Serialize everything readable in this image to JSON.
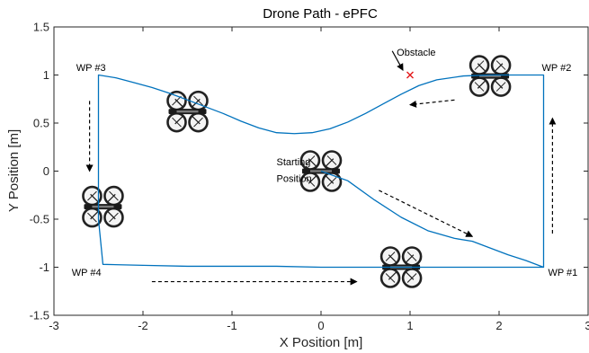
{
  "chart_data": {
    "type": "line",
    "title": "Drone Path - ePFC",
    "xlabel": "X Position [m]",
    "ylabel": "Y Position [m]",
    "xlim": [
      -3,
      3
    ],
    "ylim": [
      -1.5,
      1.5
    ],
    "xticks": [
      -3,
      -2,
      -1,
      0,
      1,
      2,
      3
    ],
    "yticks": [
      -1.5,
      -1,
      -0.5,
      0,
      0.5,
      1,
      1.5
    ],
    "xtick_labels": [
      "-3",
      "-2",
      "-1",
      "0",
      "1",
      "2",
      "3"
    ],
    "ytick_labels": [
      "-1.5",
      "-1",
      "-0.5",
      "0",
      "0.5",
      "1",
      "1.5"
    ],
    "grid": false,
    "series": [
      {
        "color": "#0072bd",
        "x": [
          0,
          0.3,
          0.6,
          0.9,
          1.2,
          1.5,
          1.7,
          1.9,
          2.1,
          2.3,
          2.5,
          2.5,
          2.5,
          2.5,
          2.5,
          2.2,
          1.9,
          1.6,
          1.3,
          1.1,
          0.9,
          0.7,
          0.5,
          0.3,
          0.1,
          -0.1,
          -0.3,
          -0.5,
          -0.7,
          -0.9,
          -1.1,
          -1.3,
          -1.5,
          -1.7,
          -1.9,
          -2.1,
          -2.3,
          -2.5,
          -2.5,
          -2.5,
          -2.5,
          -2.45,
          -2.0,
          -1.5,
          -1.0,
          -0.5,
          0.0,
          0.5,
          1.0,
          1.5,
          2.0,
          2.5
        ],
        "y": [
          0,
          -0.1,
          -0.3,
          -0.48,
          -0.62,
          -0.7,
          -0.73,
          -0.8,
          -0.87,
          -0.93,
          -1.0,
          -0.5,
          0.0,
          0.5,
          1.0,
          1.0,
          1.0,
          0.99,
          0.95,
          0.89,
          0.8,
          0.7,
          0.6,
          0.51,
          0.44,
          0.4,
          0.39,
          0.4,
          0.45,
          0.52,
          0.6,
          0.67,
          0.74,
          0.81,
          0.87,
          0.92,
          0.97,
          1.0,
          0.5,
          0.0,
          -0.5,
          -0.97,
          -0.98,
          -0.99,
          -0.99,
          -0.99,
          -1.0,
          -1.0,
          -1.0,
          -1.0,
          -1.0,
          -1.0
        ]
      }
    ],
    "obstacle": {
      "x": 1.0,
      "y": 1.0,
      "color": "#e41a1c"
    },
    "annotations": [
      {
        "id": "wp1",
        "text": "WP #1",
        "x": 2.55,
        "y": -1.09
      },
      {
        "id": "wp2",
        "text": "WP #2",
        "x": 2.48,
        "y": 1.04
      },
      {
        "id": "wp3",
        "text": "WP #3",
        "x": -2.75,
        "y": 1.04
      },
      {
        "id": "wp4",
        "text": "WP #4",
        "x": -2.8,
        "y": -1.09
      },
      {
        "id": "obstacle-label",
        "text": "Obstacle",
        "x": 0.85,
        "y": 1.2
      },
      {
        "id": "start-label-1",
        "text": "Starting",
        "x": -0.5,
        "y": 0.06
      },
      {
        "id": "start-label-2",
        "text": "Position",
        "x": -0.5,
        "y": -0.11
      }
    ],
    "drones": [
      {
        "x": -1.5,
        "y": 0.62
      },
      {
        "x": 1.9,
        "y": 0.99
      },
      {
        "x": 0.0,
        "y": 0.0
      },
      {
        "x": -2.45,
        "y": -0.37
      },
      {
        "x": 0.9,
        "y": -1.0
      }
    ],
    "direction_arrows": [
      {
        "from": [
          -2.6,
          0.73
        ],
        "to": [
          -2.6,
          0.0
        ],
        "dashed": true
      },
      {
        "from": [
          -1.9,
          -1.15
        ],
        "to": [
          0.4,
          -1.15
        ],
        "dashed": true
      },
      {
        "from": [
          2.6,
          -0.65
        ],
        "to": [
          2.6,
          0.55
        ],
        "dashed": true
      },
      {
        "from": [
          1.5,
          0.74
        ],
        "to": [
          1.0,
          0.69
        ],
        "dashed": true
      },
      {
        "from": [
          0.65,
          -0.2
        ],
        "to": [
          1.7,
          -0.68
        ],
        "dashed": true
      },
      {
        "from": [
          0.8,
          1.25
        ],
        "to": [
          0.92,
          1.05
        ],
        "dashed": false
      }
    ]
  }
}
